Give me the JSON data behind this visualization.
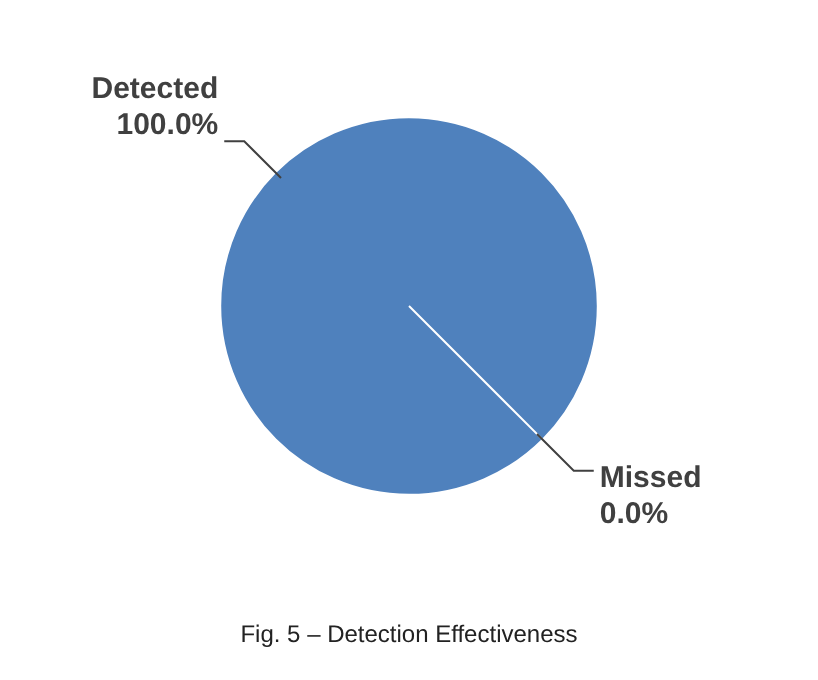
{
  "chart_data": {
    "type": "pie",
    "categories": [
      "Detected",
      "Missed"
    ],
    "values": [
      100,
      0
    ],
    "colors": [
      "#4f81bd",
      "#5a1d14"
    ],
    "value_labels": [
      "100.0%",
      "0.0%"
    ],
    "legend": false,
    "annotations": [
      "Fig. 5 – Detection Effectiveness"
    ]
  }
}
